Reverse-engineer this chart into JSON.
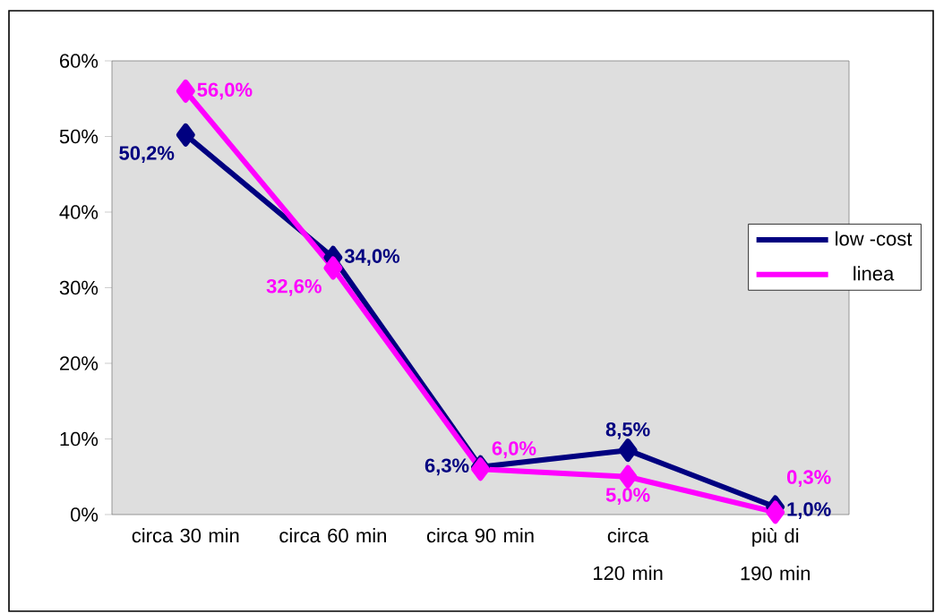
{
  "chart_data": {
    "type": "line",
    "categories": [
      "circa 30 min",
      "circa 60 min",
      "circa 90 min",
      "circa 120 min",
      "più di 190 min"
    ],
    "series": [
      {
        "name": "low -cost",
        "color": "#000080",
        "values": [
          50.2,
          34.0,
          6.3,
          8.5,
          1.0
        ],
        "value_labels": [
          "50,2%",
          "34,0%",
          "6,3%",
          "8,5%",
          "1,0%"
        ]
      },
      {
        "name": "linea",
        "color": "#ff00ff",
        "values": [
          56.0,
          32.6,
          6.0,
          5.0,
          0.3
        ],
        "value_labels": [
          "56,0%",
          "32,6%",
          "6,0%",
          "5,0%",
          "0,3%"
        ]
      }
    ],
    "ylim": [
      0,
      60
    ],
    "yticks": [
      {
        "value": 0,
        "label": "0%"
      },
      {
        "value": 10,
        "label": "10%"
      },
      {
        "value": 20,
        "label": "20%"
      },
      {
        "value": 30,
        "label": "30%"
      },
      {
        "value": 40,
        "label": "40%"
      },
      {
        "value": 50,
        "label": "50%"
      },
      {
        "value": 60,
        "label": "60%"
      }
    ],
    "legend": "right",
    "marker": "diamond"
  }
}
